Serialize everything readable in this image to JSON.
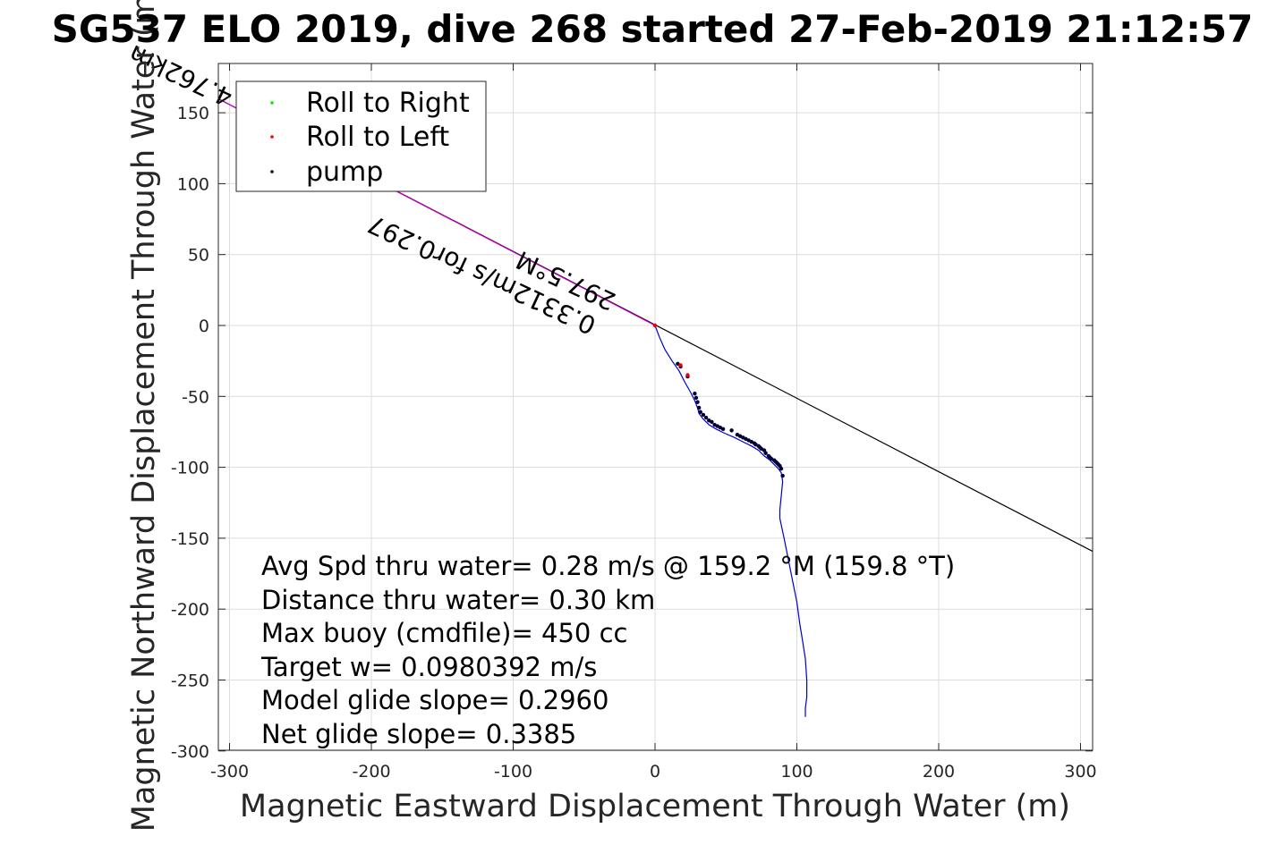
{
  "chart_data": {
    "type": "line",
    "title": "SG537 ELO 2019, dive 268 started 27-Feb-2019 21:12:57",
    "xlabel": "Magnetic Eastward Displacement Through Water (m)",
    "ylabel": "Magnetic Northward Displacement Through Water (m)",
    "xlim": [
      -310,
      310
    ],
    "ylim": [
      -300,
      185
    ],
    "xticks": [
      -300,
      -200,
      -100,
      0,
      100,
      200,
      300
    ],
    "yticks": [
      -300,
      -250,
      -200,
      -150,
      -100,
      -50,
      0,
      50,
      100,
      150
    ],
    "grid": true,
    "legend_position": "top-left",
    "legend": [
      {
        "label": "Roll to Right",
        "color": "#00ee00"
      },
      {
        "label": "Roll to Left",
        "color": "#ee0000"
      },
      {
        "label": "pump",
        "color": "#000033"
      }
    ],
    "series": [
      {
        "name": "",
        "kind": "track",
        "color": "#0000cc",
        "x": [
          0,
          3,
          7,
          12,
          17,
          21,
          25,
          28,
          30,
          31,
          34,
          38,
          43,
          49,
          56,
          62,
          68,
          73,
          77,
          81,
          84,
          87,
          89,
          90,
          89,
          88,
          88,
          91,
          94,
          97,
          100,
          102,
          104,
          106,
          107,
          107,
          106,
          106
        ],
        "y": [
          0,
          -8,
          -17,
          -25,
          -32,
          -40,
          -47,
          -53,
          -58,
          -62,
          -66,
          -70,
          -73,
          -76,
          -79,
          -82,
          -85,
          -88,
          -92,
          -95,
          -98,
          -101,
          -104,
          -110,
          -120,
          -130,
          -136,
          -150,
          -165,
          -180,
          -195,
          -210,
          -222,
          -235,
          -250,
          -262,
          -270,
          -276
        ]
      },
      {
        "name": "pump",
        "kind": "markers",
        "color": "#000033",
        "x": [
          16,
          18,
          23,
          28,
          29,
          30,
          31,
          32,
          34,
          36,
          38,
          40,
          42,
          44,
          46,
          48,
          54,
          58,
          60,
          62,
          64,
          66,
          68,
          70,
          71,
          73,
          74,
          75,
          77,
          78,
          80,
          81,
          82,
          84,
          85,
          86,
          87,
          88,
          89,
          90
        ],
        "y": [
          -27,
          -29,
          -36,
          -48,
          -51,
          -54,
          -58,
          -61,
          -63,
          -65,
          -67,
          -68,
          -70,
          -71,
          -72,
          -73,
          -74,
          -77,
          -78,
          -79,
          -80,
          -81,
          -82,
          -83,
          -84,
          -85,
          -86,
          -87,
          -88,
          -90,
          -92,
          -93,
          -94,
          -95,
          -96,
          -97,
          -98,
          -99,
          -101,
          -106
        ]
      },
      {
        "name": "Roll to Left",
        "kind": "markers",
        "color": "#ee0000",
        "x": [
          0,
          18,
          23
        ],
        "y": [
          0,
          -28,
          -35
        ]
      },
      {
        "name": "",
        "kind": "course-line",
        "color": "#000000",
        "x": [
          -312,
          310
        ],
        "y": [
          162,
          -160
        ]
      },
      {
        "name": "",
        "kind": "course-line",
        "color": "#cc00cc",
        "x": [
          -312,
          0
        ],
        "y": [
          162,
          0
        ]
      }
    ],
    "annotations": {
      "rotated_1": "0.3312m/s for0.297",
      "rotated_2": "297.5°M",
      "rotated_3": "4.762km"
    },
    "stats": [
      "Avg Spd thru water=  0.28 m/s @ 159.2 °M (159.8 °T)",
      "Distance thru water=  0.30 km",
      "Max buoy (cmdfile)= 450 cc",
      "Target w= 0.0980392 m/s",
      "Model glide slope= 0.2960",
      "Net glide slope= 0.3385"
    ]
  }
}
